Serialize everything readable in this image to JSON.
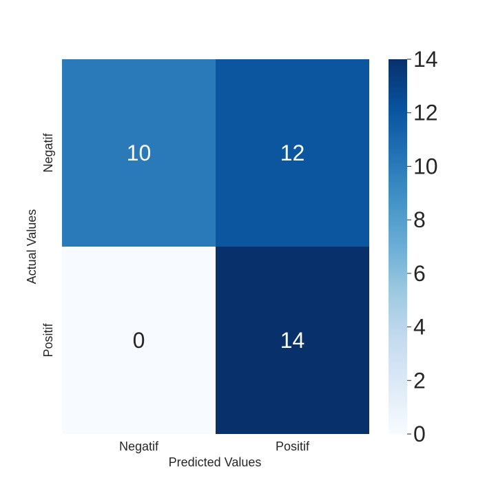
{
  "chart_data": {
    "type": "heatmap",
    "title": "",
    "xlabel": "Predicted Values",
    "ylabel": "Actual Values",
    "x_categories": [
      "Negatif",
      "Positif"
    ],
    "y_categories": [
      "Negatif",
      "Positif"
    ],
    "values": [
      [
        10,
        12
      ],
      [
        0,
        14
      ]
    ],
    "colormap": "Blues",
    "vmin": 0,
    "vmax": 14,
    "colorbar_ticks": [
      0,
      2,
      4,
      6,
      8,
      10,
      12,
      14
    ],
    "annotations": true,
    "grid": false
  },
  "colors": {
    "text_dark": "#262626",
    "text_on_dark": "#ffffff",
    "background": "#ffffff"
  }
}
